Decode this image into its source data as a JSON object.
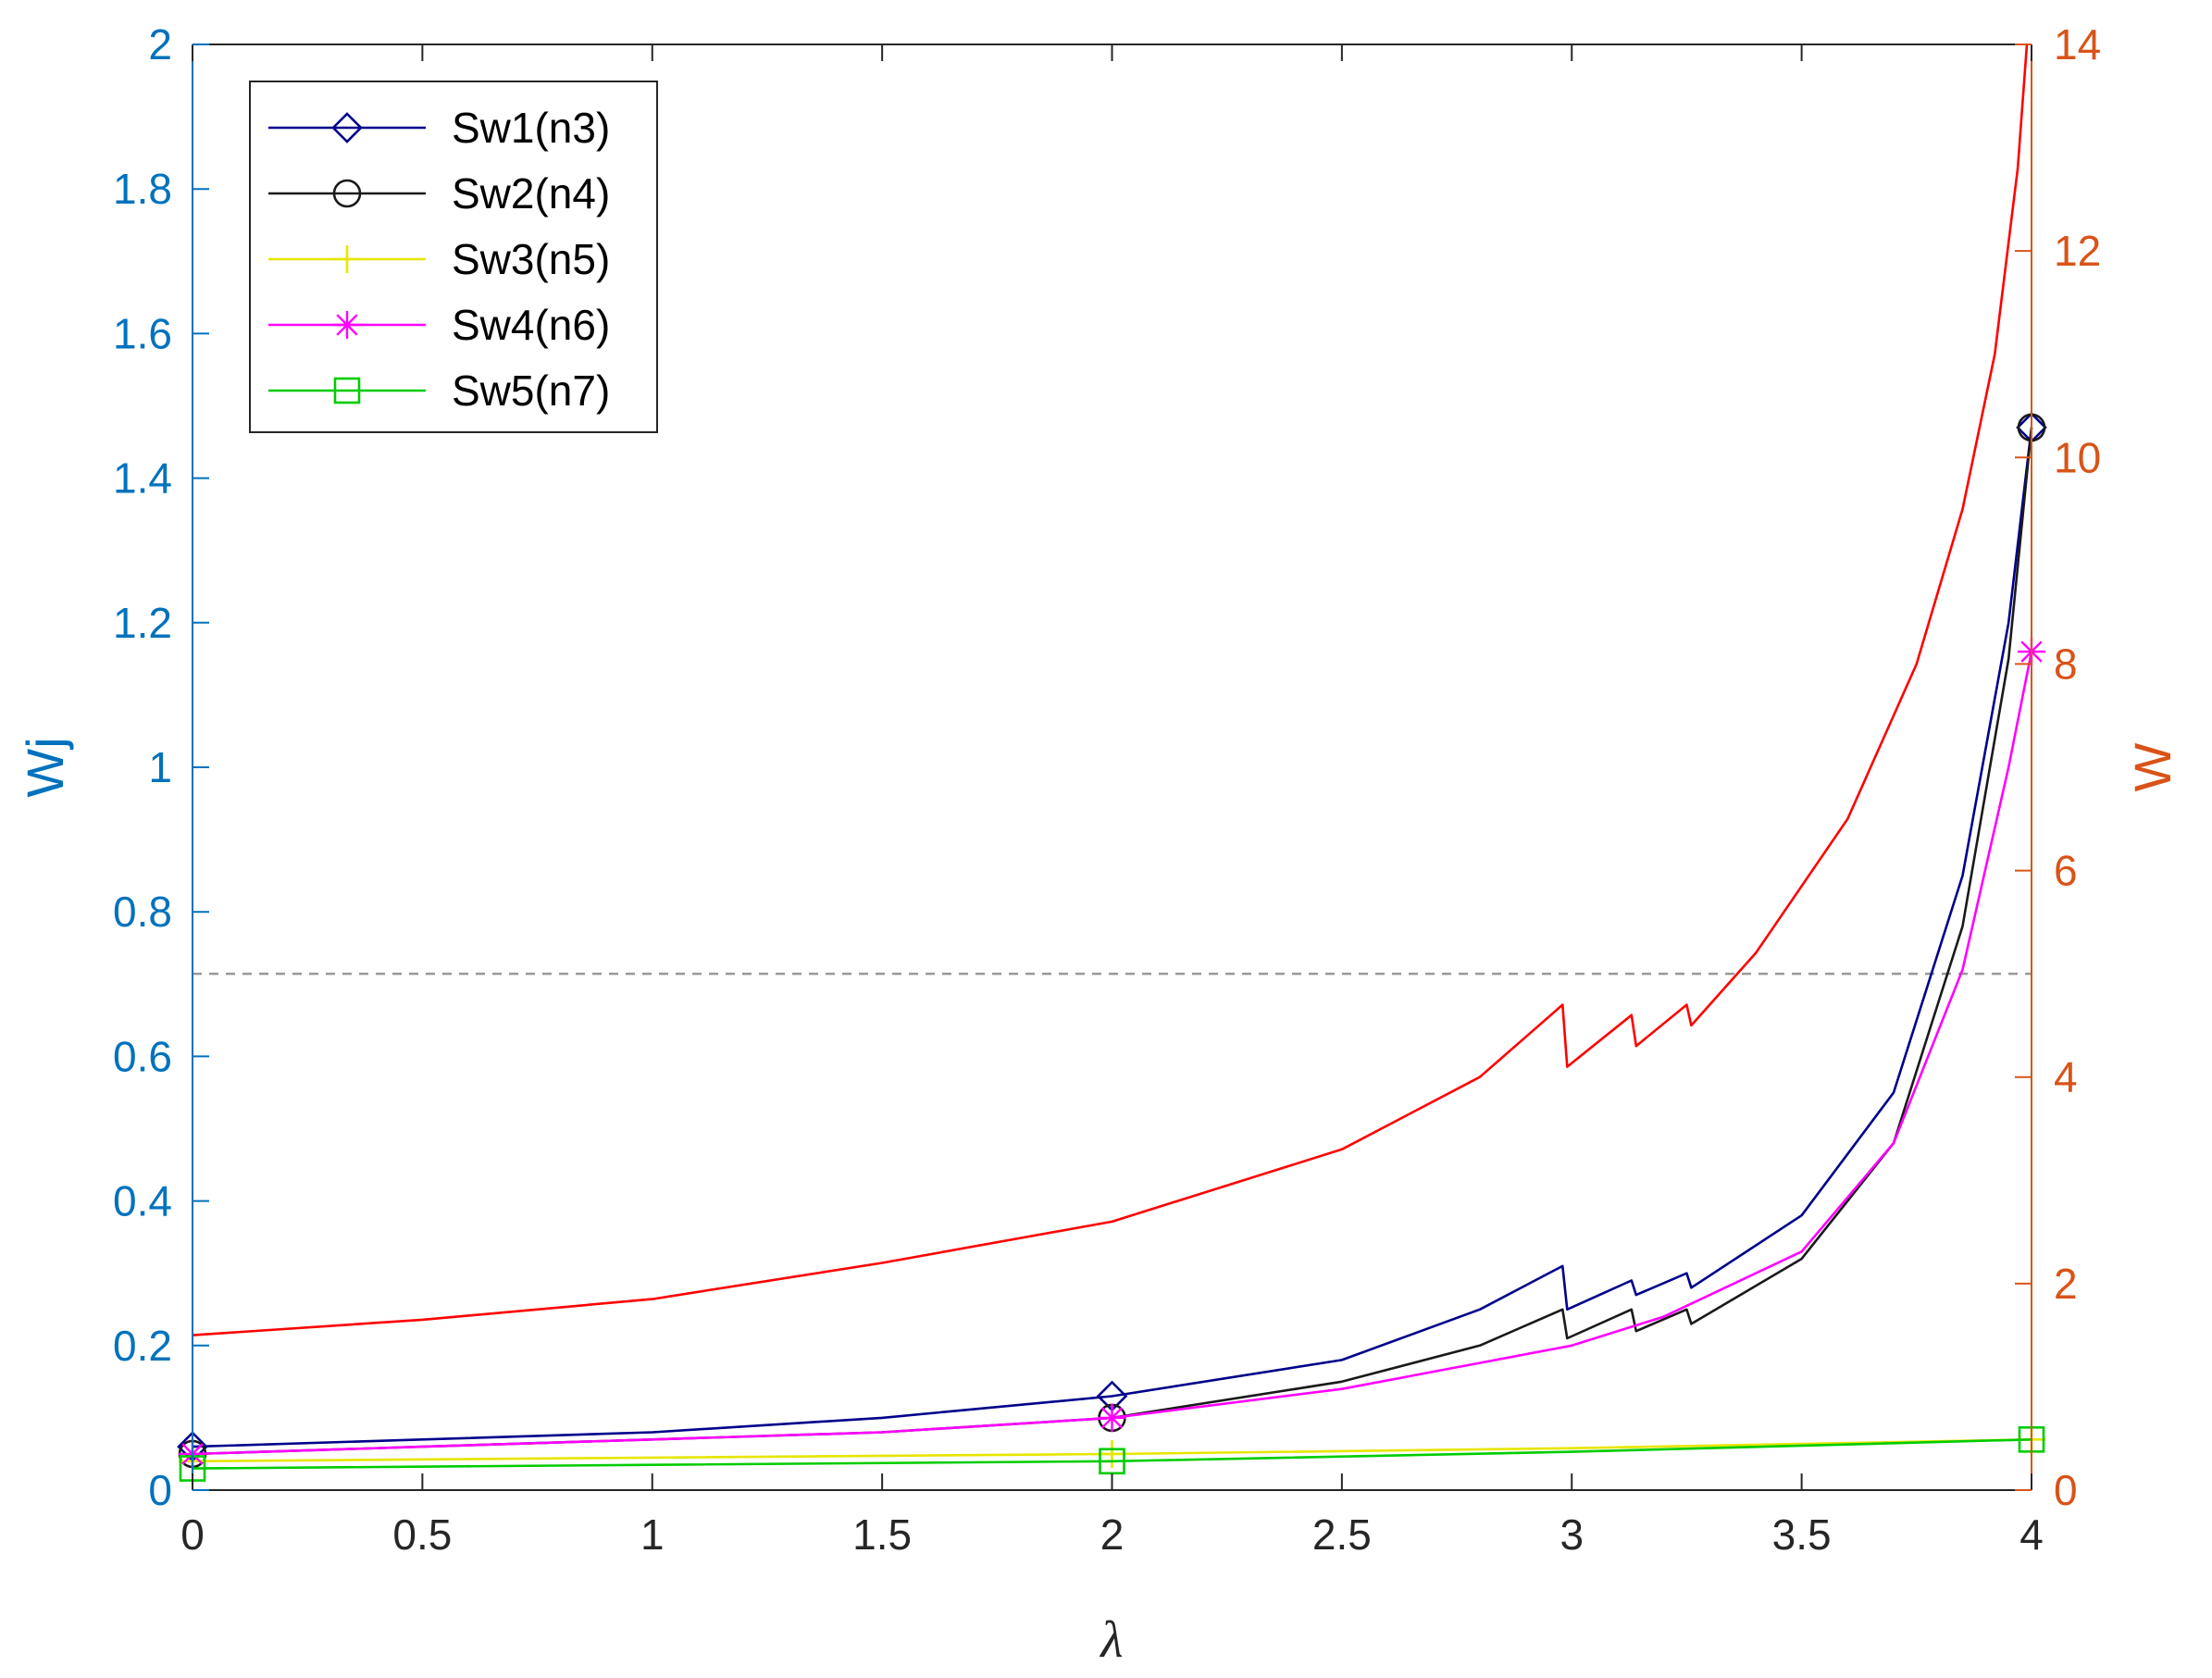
{
  "chart_data": {
    "type": "line",
    "title": "",
    "xlabel": "λ",
    "ylabel_left": "Wj",
    "ylabel_right": "W",
    "xlim": [
      0,
      4
    ],
    "ylim_left": [
      0,
      2
    ],
    "ylim_right": [
      0,
      14
    ],
    "xticks": [
      "0",
      "0.5",
      "1",
      "1.5",
      "2",
      "2.5",
      "3",
      "3.5",
      "4"
    ],
    "yticks_left": [
      "0",
      "0.2",
      "0.4",
      "0.6",
      "0.8",
      "1",
      "1.2",
      "1.4",
      "1.6",
      "1.8",
      "2"
    ],
    "yticks_right": [
      "0",
      "2",
      "4",
      "6",
      "8",
      "10",
      "12",
      "14"
    ],
    "grid": false,
    "legend_position": "top-left",
    "colors": {
      "left_axis": "#0072BD",
      "right_axis": "#D95319"
    },
    "reference_line": {
      "axis": "right",
      "y": 5,
      "style": "dashed",
      "color": "#999999"
    },
    "series": [
      {
        "name": "Sw1(n3)",
        "axis": "left",
        "color": "#00008B",
        "marker": "diamond",
        "marker_x": [
          0,
          2,
          4
        ],
        "x": [
          0,
          0.5,
          1,
          1.5,
          2,
          2.5,
          2.8,
          2.98,
          2.99,
          3.13,
          3.14,
          3.25,
          3.26,
          3.5,
          3.7,
          3.85,
          3.95,
          4.0
        ],
        "y": [
          0.06,
          0.07,
          0.08,
          0.1,
          0.13,
          0.18,
          0.25,
          0.31,
          0.25,
          0.29,
          0.27,
          0.3,
          0.28,
          0.38,
          0.55,
          0.85,
          1.2,
          1.47
        ]
      },
      {
        "name": "Sw2(n4)",
        "axis": "left",
        "color": "#1A1A1A",
        "marker": "circle",
        "marker_x": [
          0,
          2,
          4
        ],
        "x": [
          0,
          0.5,
          1,
          1.5,
          2,
          2.5,
          2.8,
          2.98,
          2.99,
          3.13,
          3.14,
          3.25,
          3.26,
          3.5,
          3.7,
          3.85,
          3.95,
          4.0
        ],
        "y": [
          0.05,
          0.06,
          0.07,
          0.08,
          0.1,
          0.15,
          0.2,
          0.25,
          0.21,
          0.25,
          0.22,
          0.25,
          0.23,
          0.32,
          0.48,
          0.78,
          1.15,
          1.47
        ]
      },
      {
        "name": "Sw3(n5)",
        "axis": "left",
        "color": "#E6E600",
        "marker": "plus",
        "marker_x": [
          0,
          2,
          4
        ],
        "x": [
          0,
          1,
          2,
          3,
          4
        ],
        "y": [
          0.04,
          0.045,
          0.05,
          0.058,
          0.07
        ]
      },
      {
        "name": "Sw4(n6)",
        "axis": "left",
        "color": "#FF00FF",
        "marker": "star",
        "marker_x": [
          0,
          2,
          4
        ],
        "x": [
          0,
          0.5,
          1,
          1.5,
          2,
          2.5,
          3.0,
          3.2,
          3.5,
          3.7,
          3.85,
          3.95,
          4.0
        ],
        "y": [
          0.05,
          0.06,
          0.07,
          0.08,
          0.1,
          0.14,
          0.2,
          0.24,
          0.33,
          0.48,
          0.72,
          1.0,
          1.16
        ]
      },
      {
        "name": "Sw5(n7)",
        "axis": "left",
        "color": "#00CC00",
        "marker": "square",
        "marker_x": [
          0,
          2,
          4
        ],
        "x": [
          0,
          1,
          2,
          3,
          4
        ],
        "y": [
          0.03,
          0.035,
          0.04,
          0.053,
          0.07
        ]
      },
      {
        "name": "",
        "axis": "right",
        "color": "#FF0000",
        "marker": "none",
        "marker_x": [],
        "x": [
          0,
          0.5,
          1,
          1.5,
          2,
          2.5,
          2.8,
          2.98,
          2.99,
          3.13,
          3.14,
          3.25,
          3.26,
          3.4,
          3.6,
          3.75,
          3.85,
          3.92,
          3.97,
          3.99
        ],
        "y": [
          1.5,
          1.65,
          1.85,
          2.2,
          2.6,
          3.3,
          4.0,
          4.7,
          4.1,
          4.6,
          4.3,
          4.7,
          4.5,
          5.2,
          6.5,
          8.0,
          9.5,
          11.0,
          12.8,
          14.0
        ]
      }
    ]
  }
}
